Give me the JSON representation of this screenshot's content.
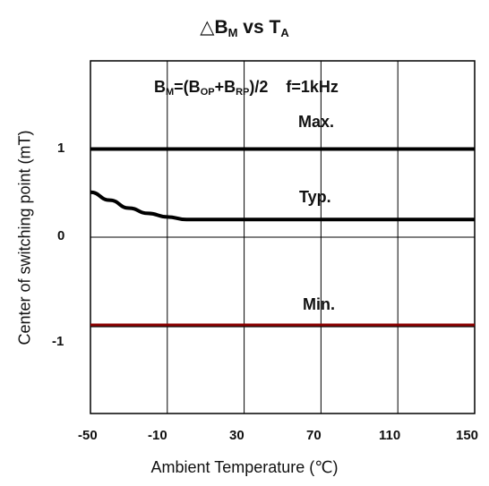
{
  "chart_data": {
    "type": "line",
    "title": {
      "symbol": "△",
      "main": "B",
      "sub": "M",
      "mid": " vs T",
      "sub2": "A"
    },
    "annotation": {
      "p1": "B",
      "s1": "M",
      "p2": "=(B",
      "s2": "OP",
      "p3": "+B",
      "s3": "RP",
      "p4": ")/2",
      "p5": "f=1kHz"
    },
    "xlabel": "Ambient Temperature (℃)",
    "ylabel": "Center of switching point (mT)",
    "x_ticks": [
      "-50",
      "-10",
      "30",
      "70",
      "110",
      "150"
    ],
    "y_ticks": [
      "1",
      "0",
      "-1"
    ],
    "xlim": [
      -50,
      150
    ],
    "ylim": [
      -2,
      2
    ],
    "grid": true,
    "series": [
      {
        "name": "Max.",
        "x": [
          -50,
          150
        ],
        "y": [
          1.0,
          1.0
        ],
        "color": "#000000"
      },
      {
        "name": "Typ.",
        "x": [
          -50,
          -40,
          -30,
          -20,
          -10,
          0,
          10,
          30,
          70,
          110,
          150
        ],
        "y": [
          0.51,
          0.42,
          0.33,
          0.27,
          0.23,
          0.2,
          0.2,
          0.2,
          0.2,
          0.2,
          0.2
        ],
        "color": "#000000"
      },
      {
        "name": "Min.",
        "x": [
          -50,
          150
        ],
        "y": [
          -1.0,
          -1.0
        ],
        "color": "#8b0000"
      }
    ]
  }
}
